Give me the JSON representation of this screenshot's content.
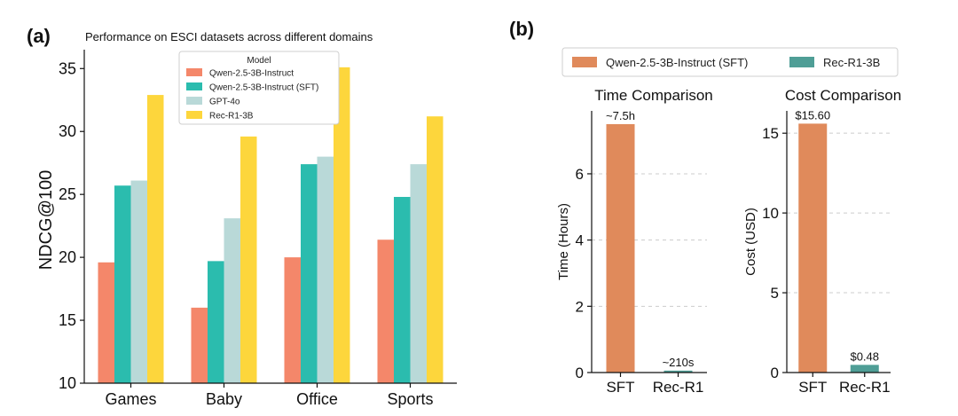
{
  "panel_a": {
    "label": "(a)",
    "chart_data": {
      "type": "bar",
      "title": "Performance on ESCI datasets across different domains",
      "xlabel": "",
      "ylabel": "NDCG@100",
      "categories": [
        "Games",
        "Baby",
        "Office",
        "Sports"
      ],
      "ylim": [
        10,
        36.5
      ],
      "yticks": [
        "10",
        "15",
        "20",
        "25",
        "30",
        "35"
      ],
      "legend_title": "Model",
      "legend_position": "top-center",
      "grid": false,
      "series": [
        {
          "name": "Qwen-2.5-3B-Instruct",
          "color": "#f4876a",
          "values": [
            19.6,
            16.0,
            20.0,
            21.4
          ]
        },
        {
          "name": "Qwen-2.5-3B-Instruct (SFT)",
          "color": "#2bbcae",
          "values": [
            25.7,
            19.7,
            27.4,
            24.8
          ]
        },
        {
          "name": "GPT-4o",
          "color": "#b9d9d8",
          "values": [
            26.1,
            23.1,
            28.0,
            27.4
          ]
        },
        {
          "name": "Rec-R1-3B",
          "color": "#fdd63c",
          "values": [
            32.9,
            29.6,
            35.1,
            31.2
          ]
        }
      ]
    }
  },
  "panel_b": {
    "label": "(b)",
    "legend": [
      {
        "name": "Qwen-2.5-3B-Instruct (SFT)",
        "color": "#e08a5b"
      },
      {
        "name": "Rec-R1-3B",
        "color": "#4f9e96"
      }
    ],
    "chart_data": [
      {
        "type": "bar",
        "title": "Time Comparison",
        "xlabel": "",
        "ylabel": "Time (Hours)",
        "categories": [
          "SFT",
          "Rec-R1"
        ],
        "values": [
          7.5,
          0.0583
        ],
        "data_labels": [
          "~7.5h",
          "~210s"
        ],
        "colors": [
          "#e08a5b",
          "#4f9e96"
        ],
        "ylim": [
          0,
          7.9
        ],
        "yticks": [
          "0",
          "2",
          "4",
          "6"
        ],
        "grid": true
      },
      {
        "type": "bar",
        "title": "Cost Comparison",
        "xlabel": "",
        "ylabel": "Cost (USD)",
        "categories": [
          "SFT",
          "Rec-R1"
        ],
        "values": [
          15.6,
          0.48
        ],
        "data_labels": [
          "$15.60",
          "$0.48"
        ],
        "colors": [
          "#e08a5b",
          "#4f9e96"
        ],
        "ylim": [
          0,
          16.4
        ],
        "yticks": [
          "0",
          "5",
          "10",
          "15"
        ],
        "grid": true
      }
    ]
  }
}
